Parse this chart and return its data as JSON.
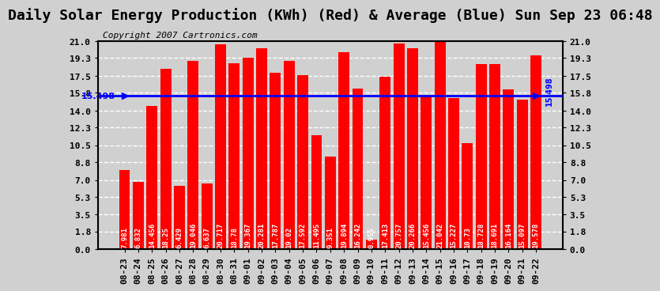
{
  "title": "Daily Solar Energy Production (KWh) (Red) & Average (Blue) Sun Sep 23 06:48",
  "copyright": "Copyright 2007 Cartronics.com",
  "average": 15.498,
  "categories": [
    "08-23",
    "08-24",
    "08-25",
    "08-26",
    "08-27",
    "08-28",
    "08-29",
    "08-30",
    "08-31",
    "09-01",
    "09-02",
    "09-03",
    "09-04",
    "09-05",
    "09-06",
    "09-07",
    "09-08",
    "09-09",
    "09-10",
    "09-11",
    "09-12",
    "09-13",
    "09-14",
    "09-15",
    "09-16",
    "09-17",
    "09-18",
    "09-19",
    "09-20",
    "09-21",
    "09-22"
  ],
  "values": [
    7.981,
    6.832,
    14.456,
    18.25,
    6.429,
    19.046,
    6.637,
    20.717,
    18.78,
    19.367,
    20.281,
    17.787,
    19.02,
    17.592,
    11.495,
    9.351,
    19.894,
    16.242,
    0.955,
    17.413,
    20.757,
    20.266,
    15.456,
    21.042,
    15.227,
    10.73,
    18.728,
    18.691,
    16.164,
    15.097,
    19.578
  ],
  "bar_color": "#ff0000",
  "avg_line_color": "#0000ff",
  "avg_label_color": "#0000ff",
  "background_color": "#d0d0d0",
  "plot_bg_color": "#d0d0d0",
  "yticks": [
    0.0,
    1.8,
    3.5,
    5.3,
    7.0,
    8.8,
    10.5,
    12.3,
    14.0,
    15.8,
    17.5,
    19.3,
    21.0
  ],
  "ylim": [
    0,
    21.0
  ],
  "title_fontsize": 13,
  "copyright_fontsize": 8,
  "bar_label_fontsize": 6.5,
  "tick_fontsize": 8
}
